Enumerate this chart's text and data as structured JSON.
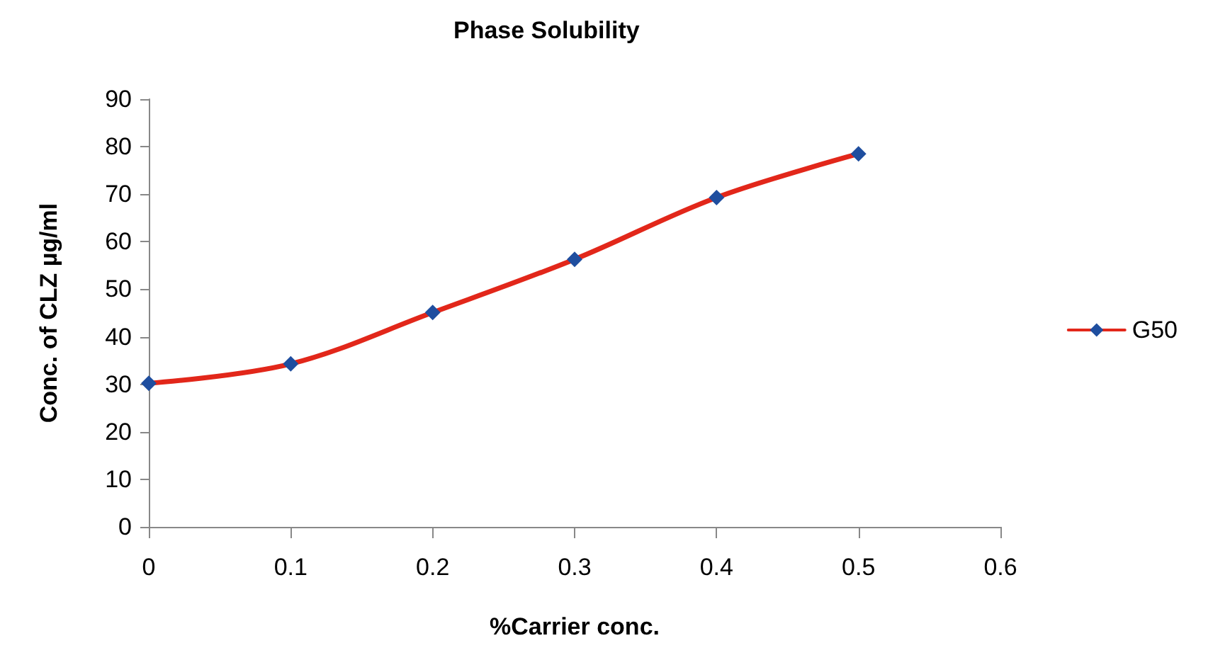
{
  "chart_data": {
    "type": "line",
    "title": "Phase Solubility",
    "xlabel": "%Carrier conc.",
    "ylabel": "Conc. of CLZ µg/ml",
    "x": [
      0,
      0.1,
      0.2,
      0.3,
      0.4,
      0.5
    ],
    "series": [
      {
        "name": "G50",
        "color": "#e2271a",
        "values": [
          30.2,
          34.3,
          45.1,
          56.3,
          69.3,
          78.5
        ]
      }
    ],
    "xlim": [
      0,
      0.6
    ],
    "xticks": [
      0,
      0.1,
      0.2,
      0.3,
      0.4,
      0.5,
      0.6
    ],
    "ylim": [
      0,
      90
    ],
    "yticks": [
      0,
      10,
      20,
      30,
      40,
      50,
      60,
      70,
      80,
      90
    ],
    "grid": false,
    "legend": "right",
    "marker": "diamond",
    "line_style": "solid"
  }
}
